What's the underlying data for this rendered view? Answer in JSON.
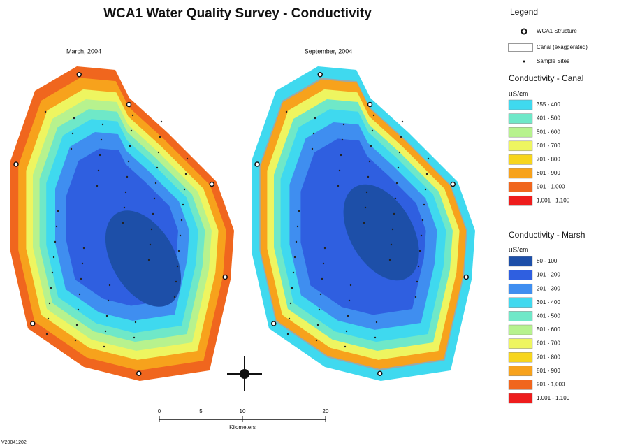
{
  "title": "WCA1 Water Quality Survey - Conductivity",
  "maps": [
    {
      "label": "March, 2004"
    },
    {
      "label": "September, 2004"
    }
  ],
  "legend": {
    "title": "Legend",
    "symbols": [
      "WCA1 Structure",
      "Canal (exaggerated)",
      "Sample Sites"
    ],
    "canal": {
      "title": "Conductivity - Canal",
      "unit": "uS/cm",
      "classes": [
        {
          "label": "355 - 400",
          "color": "#3fd9ef"
        },
        {
          "label": "401 - 500",
          "color": "#6fe8c8"
        },
        {
          "label": "501 - 600",
          "color": "#b7f28e"
        },
        {
          "label": "601 - 700",
          "color": "#eef560"
        },
        {
          "label": "701 - 800",
          "color": "#f7d51c"
        },
        {
          "label": "801 - 900",
          "color": "#f7a21c"
        },
        {
          "label": "901 - 1,000",
          "color": "#f0661e"
        },
        {
          "label": "1,001 - 1,100",
          "color": "#ee1c1c"
        }
      ]
    },
    "marsh": {
      "title": "Conductivity - Marsh",
      "unit": "uS/cm",
      "classes": [
        {
          "label": "80 - 100",
          "color": "#1d4fa8"
        },
        {
          "label": "101 - 200",
          "color": "#2f5fe0"
        },
        {
          "label": "201 - 300",
          "color": "#3f8ef0"
        },
        {
          "label": "301 - 400",
          "color": "#3fd9ef"
        },
        {
          "label": "401 - 500",
          "color": "#6fe8c8"
        },
        {
          "label": "501 - 600",
          "color": "#b7f28e"
        },
        {
          "label": "601 - 700",
          "color": "#eef560"
        },
        {
          "label": "701 - 800",
          "color": "#f7d51c"
        },
        {
          "label": "801 - 900",
          "color": "#f7a21c"
        },
        {
          "label": "901 - 1,000",
          "color": "#f0661e"
        },
        {
          "label": "1,001 - 1,100",
          "color": "#ee1c1c"
        }
      ]
    }
  },
  "scale_bar": {
    "ticks": [
      0,
      5,
      10,
      20
    ],
    "unit": "Kilometers"
  },
  "footer": "V20041202"
}
